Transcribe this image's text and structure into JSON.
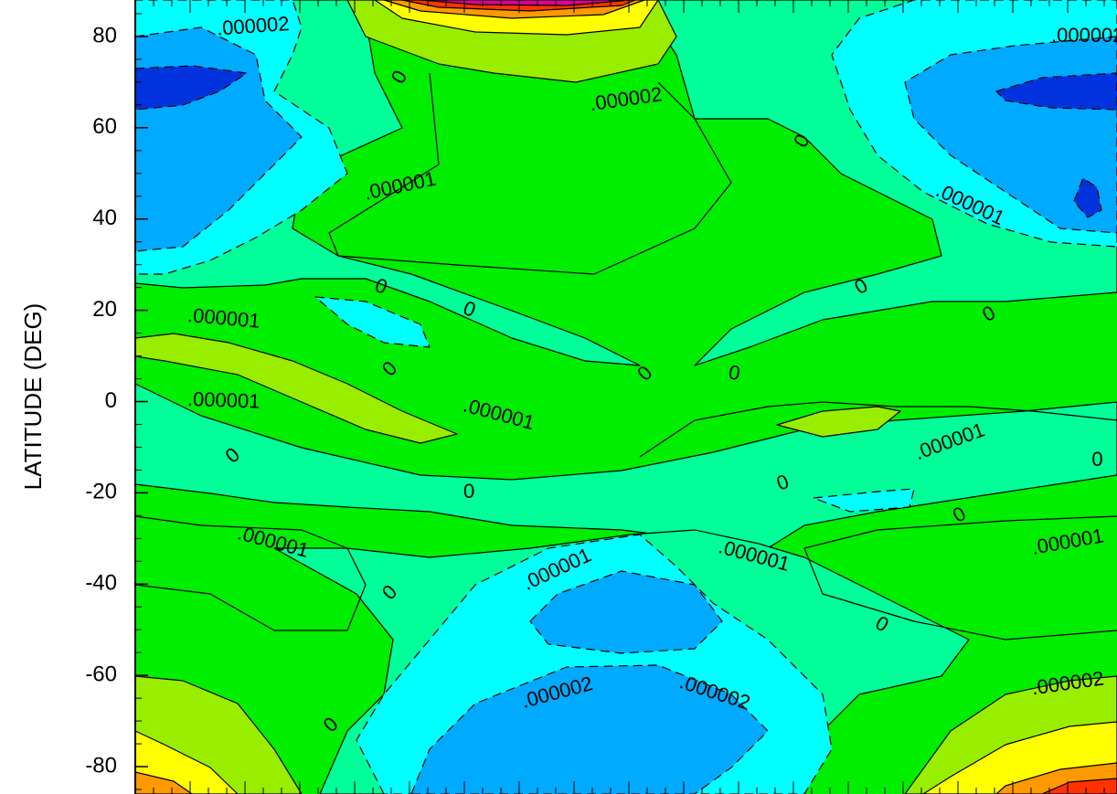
{
  "colors": {
    "level_blue_dark": "#0033dd",
    "level_blue": "#00aaff",
    "level_cyan": "#00ffff",
    "level_seagreen": "#00ff99",
    "level_green": "#00ee00",
    "level_lime": "#99ee00",
    "level_yellow": "#ffff00",
    "level_orange": "#ff9900",
    "level_red": "#ff3300",
    "level_magenta": "#dd0099",
    "contour_line": "#000000"
  },
  "chart_data": {
    "type": "heatmap",
    "subtype": "filled-contour",
    "title": "",
    "xlabel": "",
    "ylabel": "LATITUDE (DEG)",
    "ylim": [
      -86,
      88
    ],
    "yticks": [
      80,
      60,
      40,
      20,
      0,
      -20,
      -40,
      -60,
      -80
    ],
    "ytick_labels": [
      "80",
      "60",
      "40",
      "20",
      "0",
      "-20",
      "-40",
      "-60",
      "-80"
    ],
    "contour_interval": 1e-06,
    "negative_contours_dashed": true,
    "contour_labels": [
      {
        "text": ".000002",
        "lat": 82,
        "pos": 0.12,
        "rot": -4
      },
      {
        "text": ".000002",
        "lat": 66,
        "pos": 0.5,
        "rot": -8
      },
      {
        "text": ".000002",
        "lat": 80,
        "pos": 0.97,
        "rot": 0
      },
      {
        "text": "0",
        "lat": 71,
        "pos": 0.27,
        "rot": -60
      },
      {
        "text": "0",
        "lat": 57,
        "pos": 0.68,
        "rot": -60
      },
      {
        "text": ".000001",
        "lat": 47,
        "pos": 0.27,
        "rot": -12
      },
      {
        "text": ".000001",
        "lat": 43,
        "pos": 0.85,
        "rot": 25
      },
      {
        "text": "0",
        "lat": 25,
        "pos": 0.25,
        "rot": 20
      },
      {
        "text": "0",
        "lat": 20,
        "pos": 0.34,
        "rot": 20
      },
      {
        "text": "0",
        "lat": 25,
        "pos": 0.74,
        "rot": -30
      },
      {
        "text": "0",
        "lat": 19,
        "pos": 0.87,
        "rot": -28
      },
      {
        "text": ".000001",
        "lat": 18,
        "pos": 0.09,
        "rot": 5
      },
      {
        "text": "0",
        "lat": 7,
        "pos": 0.26,
        "rot": -45
      },
      {
        "text": "0",
        "lat": 6,
        "pos": 0.52,
        "rot": -45
      },
      {
        "text": "0",
        "lat": 6,
        "pos": 0.61,
        "rot": 10
      },
      {
        "text": ".000001",
        "lat": 0,
        "pos": 0.09,
        "rot": 2
      },
      {
        "text": ".000001",
        "lat": -3,
        "pos": 0.37,
        "rot": 15
      },
      {
        "text": ".000001",
        "lat": -9,
        "pos": 0.83,
        "rot": -20
      },
      {
        "text": "0",
        "lat": -13,
        "pos": 0.98,
        "rot": 0
      },
      {
        "text": "0",
        "lat": -12,
        "pos": 0.1,
        "rot": -40
      },
      {
        "text": "0",
        "lat": -20,
        "pos": 0.34,
        "rot": 0
      },
      {
        "text": "0",
        "lat": -18,
        "pos": 0.66,
        "rot": -20
      },
      {
        "text": "0",
        "lat": -25,
        "pos": 0.84,
        "rot": -30
      },
      {
        "text": ".000001",
        "lat": -31,
        "pos": 0.14,
        "rot": 15
      },
      {
        "text": ".000001",
        "lat": -37,
        "pos": 0.43,
        "rot": -25
      },
      {
        "text": ".000001",
        "lat": -34,
        "pos": 0.63,
        "rot": 15
      },
      {
        "text": ".000001",
        "lat": -31,
        "pos": 0.95,
        "rot": -10
      },
      {
        "text": "0",
        "lat": -42,
        "pos": 0.26,
        "rot": -45
      },
      {
        "text": "0",
        "lat": -49,
        "pos": 0.76,
        "rot": 30
      },
      {
        "text": ".000002",
        "lat": -64,
        "pos": 0.43,
        "rot": -15
      },
      {
        "text": ".000002",
        "lat": -64,
        "pos": 0.59,
        "rot": 18
      },
      {
        "text": ".000002",
        "lat": -62,
        "pos": 0.95,
        "rot": -8
      },
      {
        "text": "0",
        "lat": -71,
        "pos": 0.2,
        "rot": -45
      }
    ]
  }
}
